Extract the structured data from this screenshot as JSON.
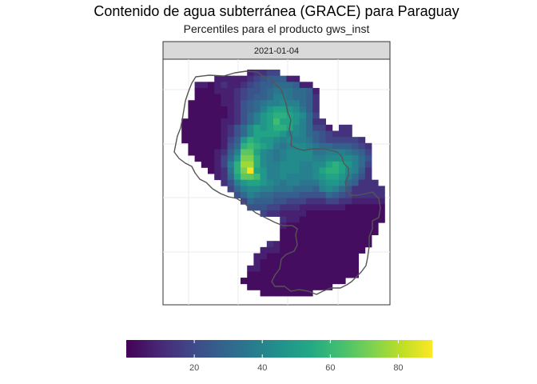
{
  "chart_data": {
    "type": "heatmap",
    "title": "Contenido de agua subterránea (GRACE) para Paraguay",
    "subtitle": "Percentiles para el producto gws_inst",
    "facet_label": "2021-01-04",
    "variable": "gws_inst",
    "value_range": [
      0,
      90
    ],
    "colorbar": {
      "palette": "viridis",
      "ticks": [
        20,
        40,
        60,
        80
      ],
      "limits": [
        0,
        90
      ]
    },
    "grid": true,
    "legend_position": "bottom",
    "grid_columns": 32,
    "grid_rows": 37,
    "cells": [
      "...........cddee................",
      "......cccccdefgggcc.............",
      "...ccbcdccdefgghhhgcc...........",
      "...bbbcccdeffghiiihhgc..........",
      "...bbbbccdefgghjjihhgd..........",
      "..bbbbbccdfghijjkjjhgd..........",
      "..bbbbbbcdfghjlmmlkigd..........",
      "..bbbbbbcdfhjlmnnmlkhe..........",
      ".bbbbbbccdfhjlmommljhdd.........",
      ".bbbbbbcdfhkmlmnnmkjheec.dd.....",
      ".bbbbbbcdfhkmmmmljkjhgfeddd.....",
      ".bbbbbbceglnmllkjkjjigfeeeeed...",
      "..bbbbbcfhnonmljijkkjihhgggfed..",
      "..bbbbcdgjppmkjijkkkkiijjjihge..",
      "...bbbcehlqqnkjijkkkkjjkkkkjhf..",
      "....bbcejnrrnkjjkkkjjkkmnmljhe..",
      ".....bcdinqtmljjkkkjjkmnnmkjgd..",
      "......cdhmppoljjkjjjjklmmljhfd..",
      ".......dfjlmmlkjijjiiikllkhgddd.",
      "........ehjkkjjiiihhhgjkjhfddddd",
      ".........fhjihhggggffffhgfeddddd",
      "..........ehgggffeeedddeeddccccc",
      "...........fffeedddcccccccbbbbbb",
      ".............eddccccbbbbbbbbbbbb",
      "................dccbbbbbbbbbbbbb",
      "................cbbbbbbbbbbbbbb.",
      "................bbbbbbbbbbbbbbb.",
      "................bbbbbbbbbbbbbb..",
      "..............dcbbbbbbbbbbbbbb..",
      ".............cccbbbbbbbbbbbbb...",
      "............ccbbbbbbbbbbbbbb....",
      "............cbbbbbbbbbbbbbbb....",
      "...........ccbbbbbbbbbbbbbbb....",
      "...........bbbbbbbbbbbbbbbbb....",
      "..........bbbbbbbbbbbbbbbb......",
      "...........bbbbbbbbbbbbb........",
      ".............bbbbbbbb..........."
    ],
    "legend": {
      ".": null,
      "a": 0,
      "b": 3,
      "c": 8,
      "d": 13,
      "e": 18,
      "f": 23,
      "g": 27,
      "h": 31,
      "i": 35,
      "j": 39,
      "k": 43,
      "l": 47,
      "m": 52,
      "n": 57,
      "o": 62,
      "p": 67,
      "q": 72,
      "r": 77,
      "s": 82,
      "t": 88
    }
  }
}
